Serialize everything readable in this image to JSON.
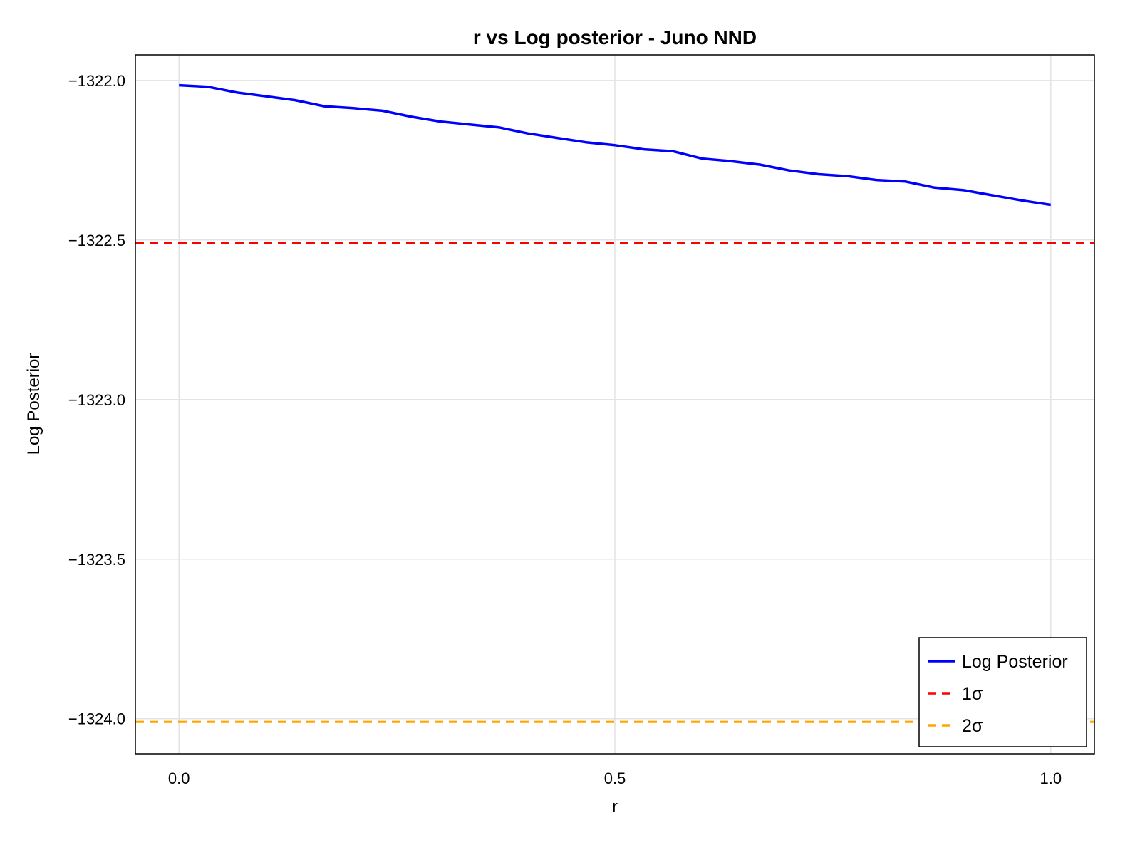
{
  "chart_data": {
    "type": "line",
    "title": "r vs Log posterior - Juno NND",
    "xlabel": "r",
    "ylabel": "Log Posterior",
    "xlim": [
      -0.05,
      1.05
    ],
    "ylim": [
      -1324.11,
      -1321.92
    ],
    "xticks": [
      0.0,
      0.5,
      1.0
    ],
    "xtick_labels": [
      "0.0",
      "0.5",
      "1.0"
    ],
    "yticks": [
      -1322.0,
      -1322.5,
      -1323.0,
      -1323.5,
      -1324.0
    ],
    "ytick_labels": [
      "−1322.0",
      "−1322.5",
      "−1323.0",
      "−1323.5",
      "−1324.0"
    ],
    "grid": true,
    "legend_position": "bottom-right",
    "series": [
      {
        "name": "Log Posterior",
        "color": "#0000ff",
        "style": "solid",
        "x": [
          0.0,
          0.0333,
          0.0667,
          0.1,
          0.1333,
          0.1667,
          0.2,
          0.2333,
          0.2667,
          0.3,
          0.3333,
          0.3667,
          0.4,
          0.4333,
          0.4667,
          0.5,
          0.5333,
          0.5667,
          0.6,
          0.6333,
          0.6667,
          0.7,
          0.7333,
          0.7667,
          0.8,
          0.8333,
          0.8667,
          0.9,
          0.9333,
          0.9667,
          1.0
        ],
        "values": [
          -1322.015,
          -1322.02,
          -1322.038,
          -1322.05,
          -1322.062,
          -1322.081,
          -1322.087,
          -1322.095,
          -1322.114,
          -1322.129,
          -1322.138,
          -1322.147,
          -1322.166,
          -1322.18,
          -1322.194,
          -1322.203,
          -1322.216,
          -1322.222,
          -1322.245,
          -1322.253,
          -1322.264,
          -1322.282,
          -1322.294,
          -1322.3,
          -1322.312,
          -1322.317,
          -1322.336,
          -1322.344,
          -1322.36,
          -1322.376,
          -1322.39
        ]
      },
      {
        "name": "1σ",
        "color": "#ff0000",
        "style": "dashed",
        "hline": -1322.51
      },
      {
        "name": "2σ",
        "color": "#ffa500",
        "style": "dashed",
        "hline": -1324.01
      }
    ]
  }
}
